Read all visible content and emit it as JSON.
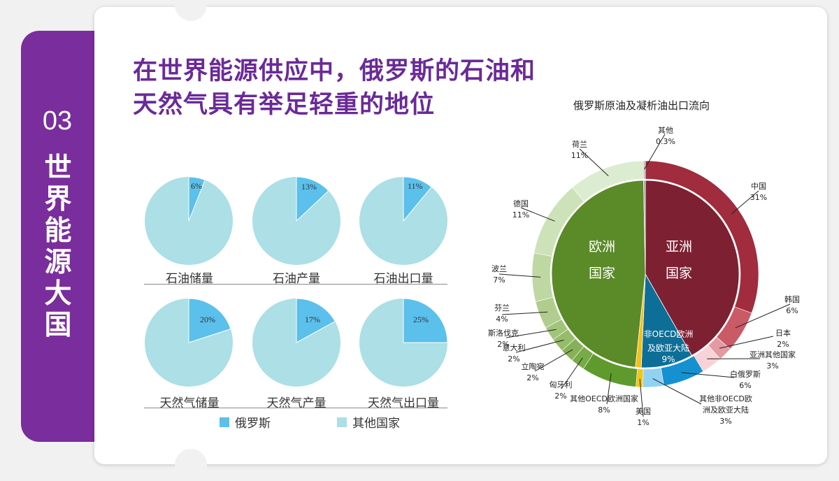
{
  "section": {
    "number": "03",
    "title": "世界能源大国"
  },
  "title": "在世界能源供应中，俄罗斯的石油和天然气具有举足轻重的地位",
  "colors": {
    "russia": "#5bc0eb",
    "others": "#acdfe6",
    "purple": "#7a2d9c"
  },
  "small_pies": [
    {
      "label": "石油储量",
      "russia": 6,
      "text": "6%"
    },
    {
      "label": "石油产量",
      "russia": 13,
      "text": "13%"
    },
    {
      "label": "石油出口量",
      "russia": 11,
      "text": "11%"
    },
    {
      "label": "天然气储量",
      "russia": 20,
      "text": "20%"
    },
    {
      "label": "天然气产量",
      "russia": 17,
      "text": "17%"
    },
    {
      "label": "天然气出口量",
      "russia": 25,
      "text": "25%"
    }
  ],
  "legend": {
    "russia": "俄罗斯",
    "others": "其他国家"
  },
  "chart_data": [
    {
      "type": "pie",
      "categories": [
        "石油储量",
        "石油产量",
        "石油出口量",
        "天然气储量",
        "天然气产量",
        "天然气出口量"
      ],
      "series": [
        {
          "name": "俄罗斯",
          "values": [
            6,
            13,
            11,
            20,
            17,
            25
          ]
        },
        {
          "name": "其他国家",
          "values": [
            94,
            87,
            89,
            80,
            83,
            75
          ]
        }
      ]
    },
    {
      "type": "pie",
      "title": "俄罗斯原油及凝析油出口流向",
      "inner": [
        {
          "label": "欧洲国家",
          "value": 48.3,
          "color": "#5b8a28"
        },
        {
          "label": "亚洲国家",
          "value": 42,
          "color": "#7d2032"
        },
        {
          "label": "非OECD欧洲及欧亚大陆",
          "value": 9,
          "text": "9%",
          "color": "#0d6e97"
        },
        {
          "label": "美国",
          "value": 1,
          "color": "#f2c016"
        },
        {
          "label": "其他",
          "value": 0.3,
          "color": "#9a9a9a"
        }
      ],
      "outer": [
        {
          "label": "中国",
          "value": 31,
          "text": "31%",
          "color": "#a02c3e"
        },
        {
          "label": "韩国",
          "value": 6,
          "text": "6%",
          "color": "#c95a66"
        },
        {
          "label": "日本",
          "value": 2,
          "text": "2%",
          "color": "#e39aa0"
        },
        {
          "label": "亚洲其他国家",
          "value": 3,
          "text": "3%",
          "color": "#f7d2d6"
        },
        {
          "label": "白俄罗斯",
          "value": 6,
          "text": "6%",
          "color": "#1591d1"
        },
        {
          "label": "其他非OECD欧洲及欧亚大陆",
          "value": 3,
          "text": "3%",
          "color": "#8fd2f2"
        },
        {
          "label": "美国",
          "value": 1,
          "text": "1%",
          "color": "#f4c41c"
        },
        {
          "label": "其他OECD欧洲国家",
          "value": 8,
          "text": "8%",
          "color": "#5f9a2c"
        },
        {
          "label": "匈牙利",
          "value": 2,
          "text": "2%",
          "color": "#78aa46"
        },
        {
          "label": "立陶宛",
          "value": 2,
          "text": "2%",
          "color": "#86b257"
        },
        {
          "label": "意大利",
          "value": 2,
          "text": "2%",
          "color": "#95bc69"
        },
        {
          "label": "斯洛伐克",
          "value": 2,
          "text": "2%",
          "color": "#a2c47a"
        },
        {
          "label": "芬兰",
          "value": 4,
          "text": "4%",
          "color": "#b0cd8d"
        },
        {
          "label": "波兰",
          "value": 7,
          "text": "7%",
          "color": "#bfd8a3"
        },
        {
          "label": "德国",
          "value": 11,
          "text": "11%",
          "color": "#cde2b8"
        },
        {
          "label": "荷兰",
          "value": 11,
          "text": "11%",
          "color": "#dcecd0"
        },
        {
          "label": "其他",
          "value": 0.3,
          "text": "0.3%",
          "color": "#bdbdbd"
        }
      ]
    }
  ]
}
